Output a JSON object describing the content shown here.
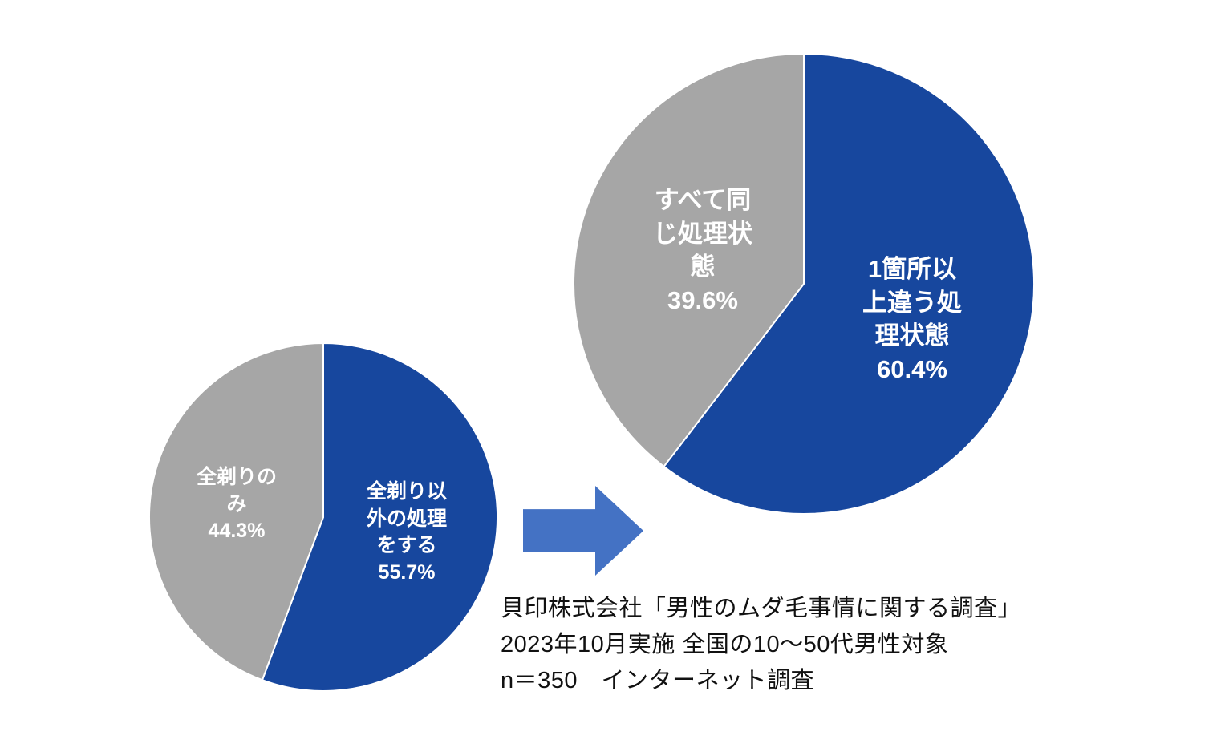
{
  "colors": {
    "pie_blue": "#17479E",
    "pie_gray": "#A6A6A6",
    "slice_border": "#FFFFFF",
    "arrow_blue": "#4472C4",
    "source_text": "#111111",
    "background": "#FFFFFF"
  },
  "chart_data": [
    {
      "type": "pie",
      "name": "before-pie",
      "units": "%",
      "start_angle_deg": 0,
      "direction": "clockwise",
      "legend": "none",
      "labels_position": "inside",
      "slices": [
        {
          "label": "全剃り以外の処理をする",
          "value": 55.7,
          "color": "#17479E",
          "display": "全剃り以\n外の処理\nをする\n55.7%"
        },
        {
          "label": "全剃りのみ",
          "value": 44.3,
          "color": "#A6A6A6",
          "display": "全剃りの\nみ\n44.3%"
        }
      ]
    },
    {
      "type": "pie",
      "name": "after-pie",
      "units": "%",
      "start_angle_deg": 0,
      "direction": "clockwise",
      "legend": "none",
      "labels_position": "inside",
      "slices": [
        {
          "label": "1箇所以上違う処理状態",
          "value": 60.4,
          "color": "#17479E",
          "display": "1箇所以\n上違う処\n理状態\n60.4%"
        },
        {
          "label": "すべて同じ処理状態",
          "value": 39.6,
          "color": "#A6A6A6",
          "display": "すべて同\nじ処理状\n態\n39.6%"
        }
      ]
    }
  ],
  "arrow": {
    "icon": "right-arrow-icon",
    "color": "#4472C4"
  },
  "source": {
    "line1": "貝印株式会社「男性のムダ毛事情に関する調査」",
    "line2": "2023年10月実施 全国の10～50代男性対象",
    "line3": "n＝350　インターネット調査"
  }
}
